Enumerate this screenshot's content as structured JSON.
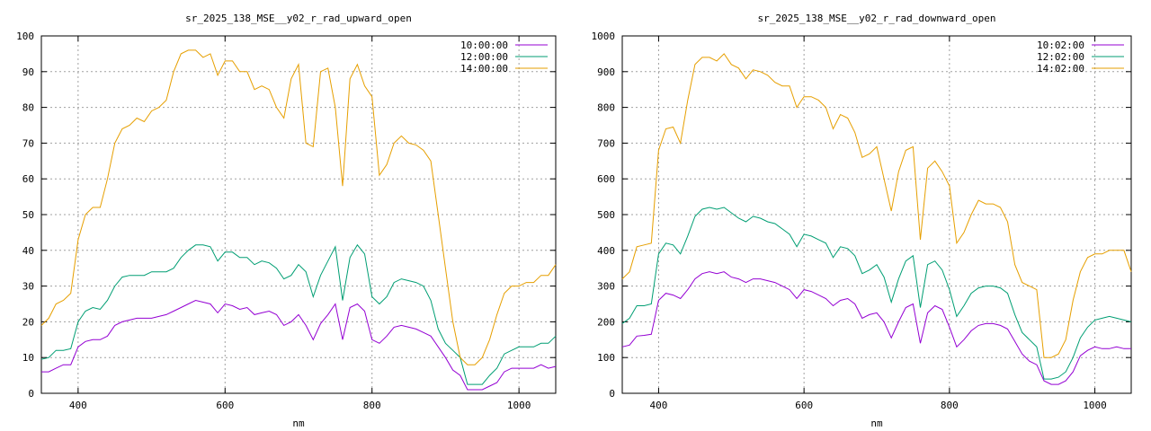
{
  "chart_data": [
    {
      "type": "line",
      "title": "sr_2025_138_MSE__y02_r_rad_upward_open",
      "xlabel": "nm",
      "ylabel": "",
      "xlim": [
        350,
        1050
      ],
      "ylim": [
        0,
        100
      ],
      "xticks": [
        400,
        600,
        800,
        1000
      ],
      "yticks": [
        0,
        10,
        20,
        30,
        40,
        50,
        60,
        70,
        80,
        90,
        100
      ],
      "grid": true,
      "legend_position": "top-right",
      "series": [
        {
          "name": "10:00:00",
          "color": "#9400d3",
          "x": [
            350,
            360,
            370,
            380,
            390,
            400,
            410,
            420,
            430,
            440,
            450,
            460,
            470,
            480,
            490,
            500,
            510,
            520,
            530,
            540,
            550,
            560,
            570,
            580,
            590,
            600,
            610,
            620,
            630,
            640,
            650,
            660,
            670,
            680,
            690,
            700,
            710,
            720,
            730,
            740,
            750,
            760,
            770,
            780,
            790,
            800,
            810,
            820,
            830,
            840,
            850,
            860,
            870,
            880,
            890,
            900,
            910,
            920,
            930,
            940,
            950,
            960,
            970,
            980,
            990,
            1000,
            1010,
            1020,
            1030,
            1040,
            1050
          ],
          "y": [
            6,
            6,
            7,
            8,
            8,
            13,
            14.5,
            15,
            15,
            16,
            19,
            20,
            20.5,
            21,
            21,
            21,
            21.5,
            22,
            23,
            24,
            25,
            26,
            25.5,
            25,
            22.5,
            25,
            24.5,
            23.5,
            24,
            22,
            22.5,
            23,
            22,
            19,
            20,
            22,
            19,
            15,
            19.5,
            22,
            25,
            15,
            24,
            25,
            23,
            15,
            14,
            16,
            18.5,
            19,
            18.5,
            18,
            17,
            16,
            13,
            10,
            6.5,
            5,
            1,
            1,
            1,
            2,
            3,
            6,
            7,
            7,
            7,
            7,
            8,
            7,
            7.5
          ]
        },
        {
          "name": "12:00:00",
          "color": "#009e73",
          "x": [
            350,
            360,
            370,
            380,
            390,
            400,
            410,
            420,
            430,
            440,
            450,
            460,
            470,
            480,
            490,
            500,
            510,
            520,
            530,
            540,
            550,
            560,
            570,
            580,
            590,
            600,
            610,
            620,
            630,
            640,
            650,
            660,
            670,
            680,
            690,
            700,
            710,
            720,
            730,
            740,
            750,
            760,
            770,
            780,
            790,
            800,
            810,
            820,
            830,
            840,
            850,
            860,
            870,
            880,
            890,
            900,
            910,
            920,
            930,
            940,
            950,
            960,
            970,
            980,
            990,
            1000,
            1010,
            1020,
            1030,
            1040,
            1050
          ],
          "y": [
            9.5,
            10,
            12,
            12,
            12.5,
            20,
            23,
            24,
            23.5,
            26,
            30,
            32.5,
            33,
            33,
            33,
            34,
            34,
            34,
            35,
            38,
            40,
            41.5,
            41.5,
            41,
            37,
            39.5,
            39.5,
            38,
            38,
            36,
            37,
            36.5,
            35,
            32,
            33,
            36,
            34,
            27,
            33,
            37,
            41,
            26,
            38,
            41.5,
            39,
            27,
            25,
            27,
            31,
            32,
            31.5,
            31,
            30,
            26,
            18,
            14,
            12,
            10,
            2.5,
            2.5,
            2.5,
            5,
            7,
            11,
            12,
            13,
            13,
            13,
            14,
            14,
            16
          ]
        },
        {
          "name": "14:00:00",
          "color": "#e69f00",
          "x": [
            350,
            360,
            370,
            380,
            390,
            400,
            410,
            420,
            430,
            440,
            450,
            460,
            470,
            480,
            490,
            500,
            510,
            520,
            530,
            540,
            550,
            560,
            570,
            580,
            590,
            600,
            610,
            620,
            630,
            640,
            650,
            660,
            670,
            680,
            690,
            700,
            710,
            720,
            730,
            740,
            750,
            760,
            770,
            780,
            790,
            800,
            810,
            820,
            830,
            840,
            850,
            860,
            870,
            880,
            890,
            900,
            910,
            920,
            930,
            940,
            950,
            960,
            970,
            980,
            990,
            1000,
            1010,
            1020,
            1030,
            1040,
            1050
          ],
          "y": [
            19,
            21,
            25,
            26,
            28,
            43,
            50,
            52,
            52,
            60,
            70,
            74,
            75,
            77,
            76,
            79,
            80,
            82,
            90,
            95,
            96,
            96,
            94,
            95,
            89,
            93,
            93,
            90,
            90,
            85,
            86,
            85,
            80,
            77,
            88,
            92,
            70,
            69,
            90,
            91,
            80,
            58,
            88,
            92,
            86,
            83,
            61,
            64,
            70,
            72,
            70,
            69.5,
            68,
            65,
            50,
            35,
            20,
            10,
            8,
            8,
            10,
            15,
            22,
            28,
            30,
            30,
            31,
            31,
            33,
            33,
            36
          ]
        }
      ]
    },
    {
      "type": "line",
      "title": "sr_2025_138_MSE__y02_r_rad_downward_open",
      "xlabel": "nm",
      "ylabel": "",
      "xlim": [
        350,
        1050
      ],
      "ylim": [
        0,
        1000
      ],
      "xticks": [
        400,
        600,
        800,
        1000
      ],
      "yticks": [
        0,
        100,
        200,
        300,
        400,
        500,
        600,
        700,
        800,
        900,
        1000
      ],
      "grid": true,
      "legend_position": "top-right",
      "series": [
        {
          "name": "10:02:00",
          "color": "#9400d3",
          "x": [
            350,
            360,
            370,
            380,
            390,
            400,
            410,
            420,
            430,
            440,
            450,
            460,
            470,
            480,
            490,
            500,
            510,
            520,
            530,
            540,
            550,
            560,
            570,
            580,
            590,
            600,
            610,
            620,
            630,
            640,
            650,
            660,
            670,
            680,
            690,
            700,
            710,
            720,
            730,
            740,
            750,
            760,
            770,
            780,
            790,
            800,
            810,
            820,
            830,
            840,
            850,
            860,
            870,
            880,
            890,
            900,
            910,
            920,
            930,
            940,
            950,
            960,
            970,
            980,
            990,
            1000,
            1010,
            1020,
            1030,
            1040,
            1050
          ],
          "y": [
            130,
            135,
            160,
            162,
            165,
            260,
            280,
            275,
            265,
            290,
            320,
            335,
            340,
            335,
            340,
            325,
            320,
            310,
            320,
            320,
            315,
            310,
            300,
            290,
            265,
            290,
            285,
            275,
            265,
            245,
            260,
            265,
            250,
            210,
            220,
            225,
            200,
            155,
            200,
            240,
            250,
            140,
            225,
            245,
            235,
            185,
            130,
            150,
            175,
            190,
            195,
            195,
            190,
            180,
            145,
            110,
            90,
            80,
            35,
            25,
            25,
            35,
            60,
            105,
            120,
            130,
            125,
            125,
            130,
            125,
            125
          ]
        },
        {
          "name": "12:02:00",
          "color": "#009e73",
          "x": [
            350,
            360,
            370,
            380,
            390,
            400,
            410,
            420,
            430,
            440,
            450,
            460,
            470,
            480,
            490,
            500,
            510,
            520,
            530,
            540,
            550,
            560,
            570,
            580,
            590,
            600,
            610,
            620,
            630,
            640,
            650,
            660,
            670,
            680,
            690,
            700,
            710,
            720,
            730,
            740,
            750,
            760,
            770,
            780,
            790,
            800,
            810,
            820,
            830,
            840,
            850,
            860,
            870,
            880,
            890,
            900,
            910,
            920,
            930,
            940,
            950,
            960,
            970,
            980,
            990,
            1000,
            1010,
            1020,
            1030,
            1040,
            1050
          ],
          "y": [
            195,
            210,
            245,
            245,
            250,
            390,
            420,
            415,
            390,
            440,
            495,
            515,
            520,
            515,
            520,
            505,
            490,
            480,
            495,
            490,
            480,
            475,
            460,
            445,
            410,
            445,
            440,
            430,
            420,
            380,
            410,
            405,
            385,
            335,
            345,
            360,
            325,
            255,
            320,
            370,
            385,
            240,
            360,
            370,
            345,
            290,
            215,
            245,
            280,
            295,
            300,
            300,
            295,
            280,
            220,
            170,
            150,
            130,
            40,
            40,
            45,
            60,
            100,
            155,
            185,
            205,
            210,
            215,
            210,
            205,
            200
          ]
        },
        {
          "name": "14:02:00",
          "color": "#e69f00",
          "x": [
            350,
            360,
            370,
            380,
            390,
            400,
            410,
            420,
            430,
            440,
            450,
            460,
            470,
            480,
            490,
            500,
            510,
            520,
            530,
            540,
            550,
            560,
            570,
            580,
            590,
            600,
            610,
            620,
            630,
            640,
            650,
            660,
            670,
            680,
            690,
            700,
            710,
            720,
            730,
            740,
            750,
            760,
            770,
            780,
            790,
            800,
            810,
            820,
            830,
            840,
            850,
            860,
            870,
            880,
            890,
            900,
            910,
            920,
            930,
            940,
            950,
            960,
            970,
            980,
            990,
            1000,
            1010,
            1020,
            1030,
            1040,
            1050
          ],
          "y": [
            320,
            340,
            410,
            415,
            420,
            680,
            740,
            745,
            700,
            820,
            920,
            940,
            940,
            930,
            950,
            920,
            910,
            880,
            905,
            900,
            890,
            870,
            860,
            860,
            800,
            830,
            830,
            820,
            800,
            740,
            780,
            770,
            730,
            660,
            670,
            690,
            600,
            510,
            620,
            680,
            690,
            430,
            630,
            650,
            620,
            580,
            420,
            450,
            500,
            540,
            530,
            530,
            520,
            480,
            360,
            310,
            300,
            290,
            100,
            100,
            110,
            150,
            260,
            340,
            380,
            390,
            390,
            400,
            400,
            400,
            340
          ]
        }
      ]
    }
  ]
}
